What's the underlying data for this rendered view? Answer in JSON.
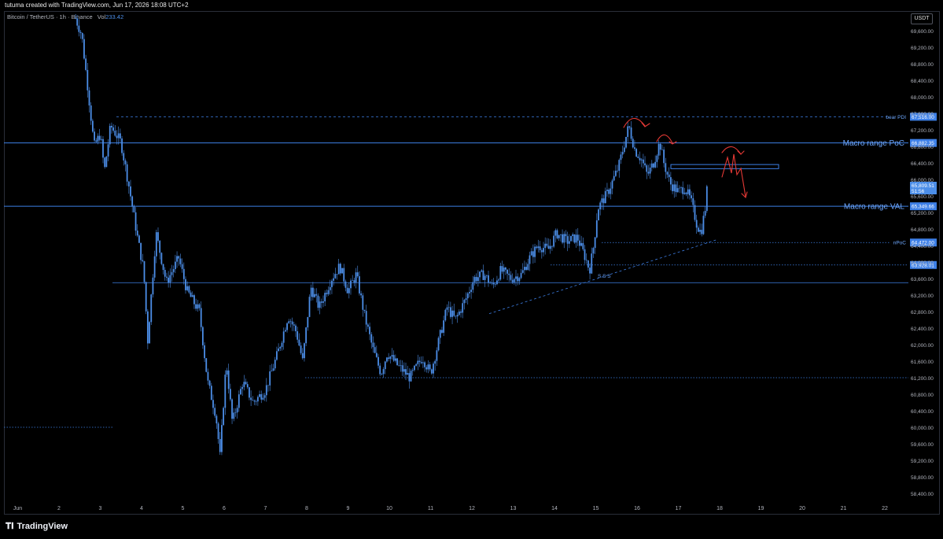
{
  "header": {
    "created_by": "tutuma created with TradingView.com, Jun 17, 2026 18:08 UTC+2"
  },
  "symbol": {
    "title": "Bitcoin / TetherUS · 1h · Binance",
    "vol_label": "Vol",
    "vol_value": "233.42"
  },
  "currency": "USDT",
  "footer": {
    "brand": "TradingView"
  },
  "colors": {
    "background": "#000000",
    "candle": "#4c8ee8",
    "level_line": "#3d7fe6",
    "annotation_red": "#e53935",
    "grid_text": "#b2b5be"
  },
  "chart_data": {
    "type": "candlestick",
    "symbol": "BTCUSDT",
    "timeframe": "1h",
    "ylim": [
      58000,
      70000
    ],
    "price_ticks": [
      "69,600.00",
      "69,200.00",
      "68,800.00",
      "68,400.00",
      "68,000.00",
      "67,600.00",
      "67,200.00",
      "66,800.00",
      "66,400.00",
      "66,000.00",
      "65,600.00",
      "65,200.00",
      "64,800.00",
      "64,400.00",
      "64,000.00",
      "63,600.00",
      "63,200.00",
      "62,800.00",
      "62,400.00",
      "62,000.00",
      "61,600.00",
      "61,200.00",
      "60,800.00",
      "60,400.00",
      "60,000.00",
      "59,600.00",
      "59,200.00",
      "58,800.00",
      "58,400.00"
    ],
    "time_ticks": [
      {
        "label": "Jun",
        "day": 1
      },
      {
        "label": "2",
        "day": 2
      },
      {
        "label": "3",
        "day": 3
      },
      {
        "label": "4",
        "day": 4
      },
      {
        "label": "5",
        "day": 5
      },
      {
        "label": "6",
        "day": 6
      },
      {
        "label": "7",
        "day": 7
      },
      {
        "label": "8",
        "day": 8
      },
      {
        "label": "9",
        "day": 9
      },
      {
        "label": "10",
        "day": 10
      },
      {
        "label": "11",
        "day": 11
      },
      {
        "label": "12",
        "day": 12
      },
      {
        "label": "13",
        "day": 13
      },
      {
        "label": "14",
        "day": 14
      },
      {
        "label": "15",
        "day": 15
      },
      {
        "label": "16",
        "day": 16
      },
      {
        "label": "17",
        "day": 17
      },
      {
        "label": "18",
        "day": 18
      },
      {
        "label": "19",
        "day": 19
      },
      {
        "label": "20",
        "day": 20
      },
      {
        "label": "21",
        "day": 21
      },
      {
        "label": "22",
        "day": 22
      }
    ],
    "price_path": [
      [
        2.4,
        69900
      ],
      [
        2.55,
        69500
      ],
      [
        2.7,
        68200
      ],
      [
        2.85,
        66800
      ],
      [
        3.0,
        67100
      ],
      [
        3.1,
        66200
      ],
      [
        3.25,
        67300
      ],
      [
        3.5,
        66900
      ],
      [
        3.7,
        65800
      ],
      [
        3.9,
        64600
      ],
      [
        4.05,
        63800
      ],
      [
        4.15,
        62100
      ],
      [
        4.35,
        64700
      ],
      [
        4.6,
        63500
      ],
      [
        4.9,
        64100
      ],
      [
        5.1,
        63300
      ],
      [
        5.4,
        62800
      ],
      [
        5.6,
        61100
      ],
      [
        5.8,
        60300
      ],
      [
        5.9,
        59300
      ],
      [
        6.05,
        61600
      ],
      [
        6.2,
        60100
      ],
      [
        6.45,
        61100
      ],
      [
        6.7,
        60600
      ],
      [
        7.0,
        60900
      ],
      [
        7.3,
        61800
      ],
      [
        7.55,
        62700
      ],
      [
        7.75,
        62300
      ],
      [
        7.9,
        61600
      ],
      [
        8.1,
        63400
      ],
      [
        8.3,
        62900
      ],
      [
        8.6,
        63600
      ],
      [
        8.8,
        63900
      ],
      [
        9.0,
        63300
      ],
      [
        9.2,
        63700
      ],
      [
        9.4,
        62700
      ],
      [
        9.6,
        61900
      ],
      [
        9.8,
        61300
      ],
      [
        9.95,
        61800
      ],
      [
        10.2,
        61500
      ],
      [
        10.5,
        61200
      ],
      [
        10.8,
        61700
      ],
      [
        11.0,
        61300
      ],
      [
        11.2,
        62100
      ],
      [
        11.4,
        62900
      ],
      [
        11.6,
        62600
      ],
      [
        11.85,
        63100
      ],
      [
        12.05,
        63600
      ],
      [
        12.3,
        63700
      ],
      [
        12.5,
        63400
      ],
      [
        12.7,
        63800
      ],
      [
        12.95,
        63600
      ],
      [
        13.2,
        63700
      ],
      [
        13.4,
        64100
      ],
      [
        13.6,
        64400
      ],
      [
        13.85,
        64300
      ],
      [
        14.05,
        64700
      ],
      [
        14.3,
        64500
      ],
      [
        14.55,
        64600
      ],
      [
        14.75,
        64100
      ],
      [
        14.85,
        63800
      ],
      [
        14.95,
        64400
      ],
      [
        15.05,
        65300
      ],
      [
        15.3,
        65700
      ],
      [
        15.55,
        66300
      ],
      [
        15.7,
        66900
      ],
      [
        15.8,
        67300
      ],
      [
        15.95,
        66700
      ],
      [
        16.1,
        66500
      ],
      [
        16.25,
        66100
      ],
      [
        16.4,
        66400
      ],
      [
        16.55,
        66900
      ],
      [
        16.65,
        66400
      ],
      [
        16.8,
        65900
      ],
      [
        17.0,
        65700
      ],
      [
        17.15,
        65800
      ],
      [
        17.3,
        65500
      ],
      [
        17.45,
        64900
      ],
      [
        17.55,
        64700
      ],
      [
        17.65,
        65300
      ],
      [
        17.7,
        65810
      ]
    ],
    "lines": [
      {
        "name": "bear PDI",
        "price": 67516.0,
        "label": "67,516.00",
        "style": "dashed"
      },
      {
        "name": "Macro range PoC",
        "price": 66882.35,
        "label": "66,882.35",
        "style": "solid"
      },
      {
        "name": "Macro range VAL",
        "price": 65349.66,
        "label": "65,349.66",
        "style": "solid"
      },
      {
        "name": "nPoC",
        "price": 64472.0,
        "label": "64,472.00",
        "style": "dotted"
      },
      {
        "name": "",
        "price": 63928.01,
        "label": "63,928.01",
        "style": "dotted"
      }
    ],
    "last_price": {
      "label": "65,809.51",
      "countdown": "51:56",
      "price": 65809.51
    },
    "annotations": {
      "bear_pdi": "bear PDI",
      "poc": "Macro range PoC",
      "val": "Macro range VAL",
      "npoc": "nPoC",
      "sss": "S S S"
    }
  }
}
